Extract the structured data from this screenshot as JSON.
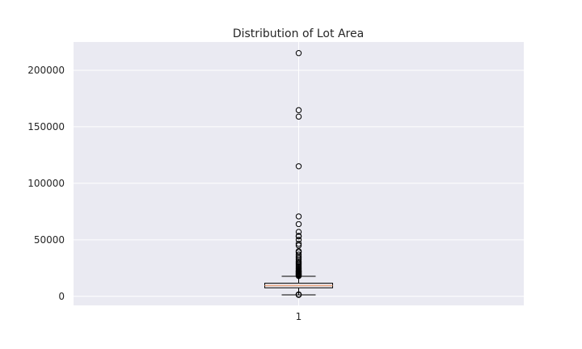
{
  "chart_data": {
    "type": "box",
    "title": "Distribution of Lot Area",
    "xlabel": "",
    "ylabel": "",
    "categories": [
      "1"
    ],
    "ylim": [
      -8000,
      225000
    ],
    "yticks": [
      0,
      50000,
      100000,
      150000,
      200000
    ],
    "ytick_labels": [
      "0",
      "50000",
      "100000",
      "150000",
      "200000"
    ],
    "grid": true,
    "boxes": [
      {
        "label": "1",
        "whisker_low": 1300,
        "q1": 7550,
        "median": 9480,
        "q3": 11600,
        "whisker_high": 17700,
        "outliers": [
          1300,
          1500,
          1700,
          18000,
          18500,
          19000,
          19500,
          20000,
          20500,
          21000,
          21500,
          22000,
          22500,
          23000,
          24000,
          25000,
          26000,
          27000,
          28000,
          29000,
          30000,
          31000,
          32500,
          34000,
          35500,
          37000,
          39000,
          40000,
          45000,
          46500,
          50000,
          53000,
          53500,
          57000,
          63900,
          70700,
          115100,
          159000,
          164700,
          215200
        ]
      }
    ],
    "colors": {
      "background": "#eaeaf2",
      "grid": "#ffffff",
      "box": "#000000",
      "median": "#e8a37d"
    }
  }
}
